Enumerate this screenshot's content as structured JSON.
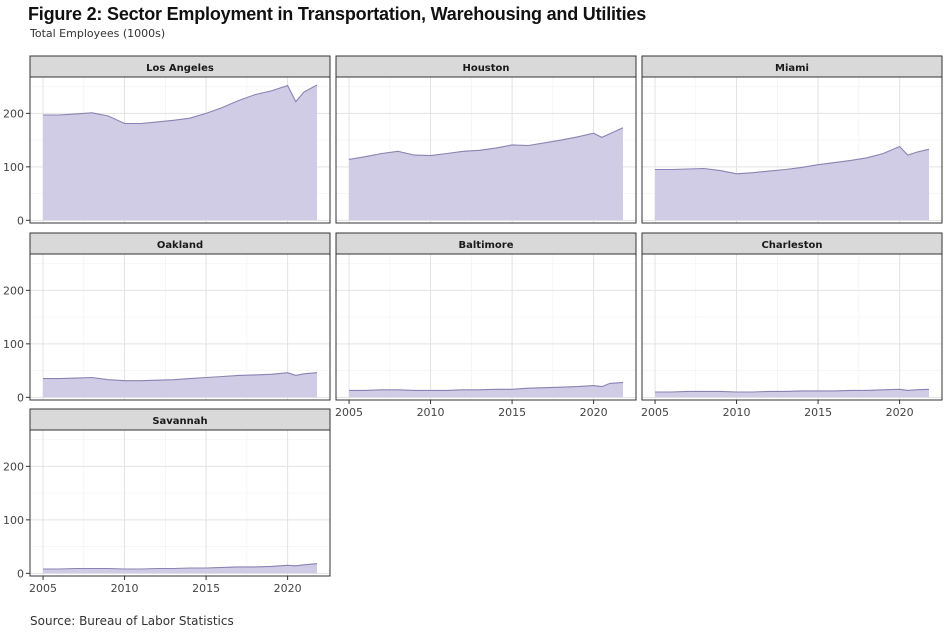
{
  "figure": {
    "title": "Figure 2: Sector Employment in Transportation, Warehousing and Utilities",
    "subtitle": "Total Employees (1000s)",
    "source": "Source: Bureau of Labor Statistics"
  },
  "colors": {
    "area_fill": "#d0cce5",
    "area_line": "#8a83b3",
    "strip_bg": "#d9d9d9",
    "panel_border": "#333333",
    "grid_major": "#e3e3e3",
    "grid_minor": "#f1f1f1"
  },
  "chart_data": {
    "type": "area",
    "facets": [
      "Los Angeles",
      "Houston",
      "Miami",
      "Oakland",
      "Baltimore",
      "Charleston",
      "Savannah"
    ],
    "x": [
      2005,
      2006,
      2007,
      2008,
      2009,
      2010,
      2011,
      2012,
      2013,
      2014,
      2015,
      2016,
      2017,
      2018,
      2019,
      2020,
      2020.5,
      2021,
      2021.8
    ],
    "xlim": [
      2004.2,
      2022.6
    ],
    "ylim": [
      -5,
      268
    ],
    "x_ticks": [
      2005,
      2010,
      2015,
      2020
    ],
    "y_ticks": [
      0,
      100,
      200
    ],
    "grid": true,
    "series": [
      {
        "name": "Los Angeles",
        "values": [
          197,
          197,
          199,
          201,
          195,
          181,
          181,
          184,
          187,
          191,
          200,
          211,
          224,
          235,
          242,
          252,
          222,
          240,
          253
        ]
      },
      {
        "name": "Houston",
        "values": [
          114,
          119,
          125,
          129,
          122,
          121,
          125,
          129,
          131,
          135,
          141,
          140,
          145,
          150,
          156,
          163,
          155,
          162,
          173
        ]
      },
      {
        "name": "Miami",
        "values": [
          95,
          95,
          96,
          97,
          93,
          87,
          89,
          92,
          95,
          99,
          104,
          108,
          112,
          117,
          125,
          138,
          122,
          127,
          133
        ]
      },
      {
        "name": "Oakland",
        "values": [
          35,
          35,
          36,
          37,
          33,
          31,
          31,
          32,
          33,
          35,
          37,
          39,
          41,
          42,
          43,
          46,
          41,
          44,
          46
        ]
      },
      {
        "name": "Baltimore",
        "values": [
          13,
          13,
          14,
          14,
          13,
          13,
          13,
          14,
          14,
          15,
          15,
          17,
          18,
          19,
          20,
          22,
          20,
          26,
          28
        ]
      },
      {
        "name": "Charleston",
        "values": [
          10,
          10,
          11,
          11,
          11,
          10,
          10,
          11,
          11,
          12,
          12,
          12,
          13,
          13,
          14,
          15,
          13,
          14,
          15
        ]
      },
      {
        "name": "Savannah",
        "values": [
          8,
          8,
          9,
          9,
          9,
          8,
          8,
          9,
          9,
          10,
          10,
          11,
          12,
          12,
          13,
          15,
          14,
          16,
          18
        ]
      }
    ]
  }
}
